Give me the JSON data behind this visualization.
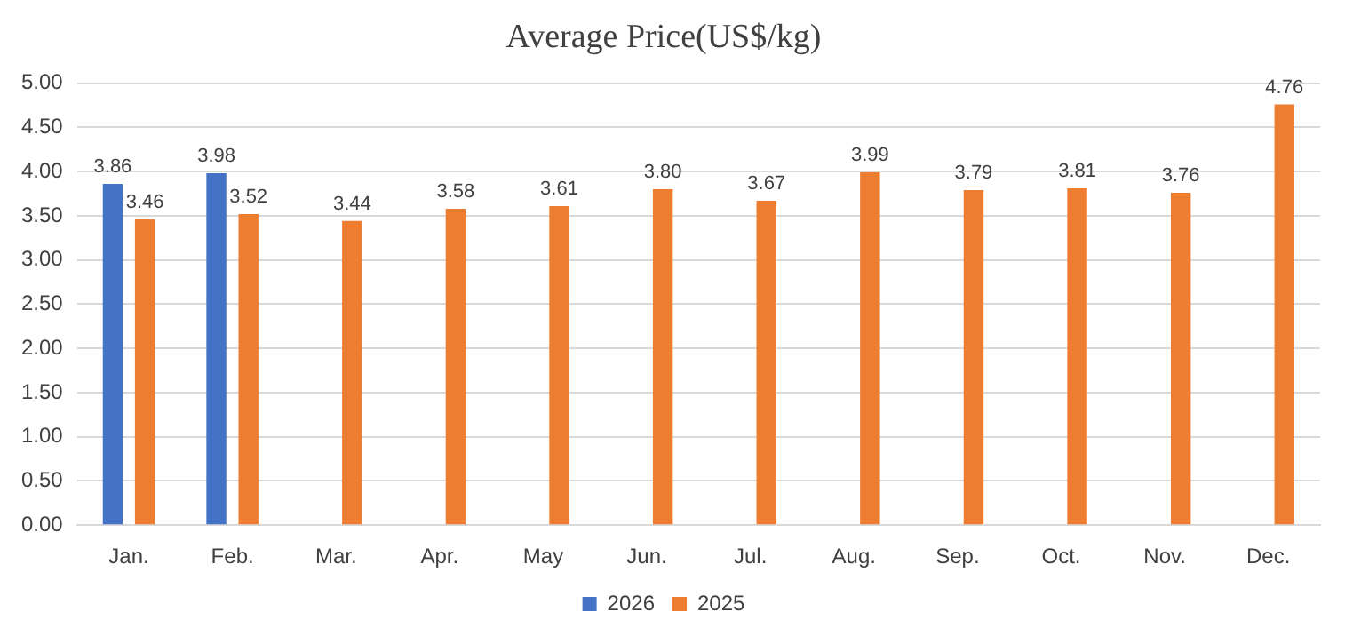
{
  "chart_data": {
    "type": "bar",
    "title": "Average Price(US$/kg)",
    "categories": [
      "Jan.",
      "Feb.",
      "Mar.",
      "Apr.",
      "May",
      "Jun.",
      "Jul.",
      "Aug.",
      "Sep.",
      "Oct.",
      "Nov.",
      "Dec."
    ],
    "series": [
      {
        "name": "2026",
        "color": "#4472c4",
        "values": [
          3.86,
          3.98,
          null,
          null,
          null,
          null,
          null,
          null,
          null,
          null,
          null,
          null
        ],
        "value_labels": [
          "3.86",
          "3.98",
          null,
          null,
          null,
          null,
          null,
          null,
          null,
          null,
          null,
          null
        ]
      },
      {
        "name": "2025",
        "color": "#ed7d31",
        "values": [
          3.46,
          3.52,
          3.44,
          3.58,
          3.61,
          3.8,
          3.67,
          3.99,
          3.79,
          3.81,
          3.76,
          4.76
        ],
        "value_labels": [
          "3.46",
          "3.52",
          "3.44",
          "3.58",
          "3.61",
          "3.80",
          "3.67",
          "3.99",
          "3.79",
          "3.81",
          "3.76",
          "4.76"
        ]
      }
    ],
    "ylim": [
      0,
      5
    ],
    "yticks": [
      {
        "value": 0,
        "label": "0.00"
      },
      {
        "value": 0.5,
        "label": "0.50"
      },
      {
        "value": 1,
        "label": "1.00"
      },
      {
        "value": 1.5,
        "label": "1.50"
      },
      {
        "value": 2,
        "label": "2.00"
      },
      {
        "value": 2.5,
        "label": "2.50"
      },
      {
        "value": 3,
        "label": "3.00"
      },
      {
        "value": 3.5,
        "label": "3.50"
      },
      {
        "value": 4,
        "label": "4.00"
      },
      {
        "value": 4.5,
        "label": "4.50"
      },
      {
        "value": 5,
        "label": "5.00"
      }
    ],
    "grid": "y",
    "legend": "bottom"
  }
}
